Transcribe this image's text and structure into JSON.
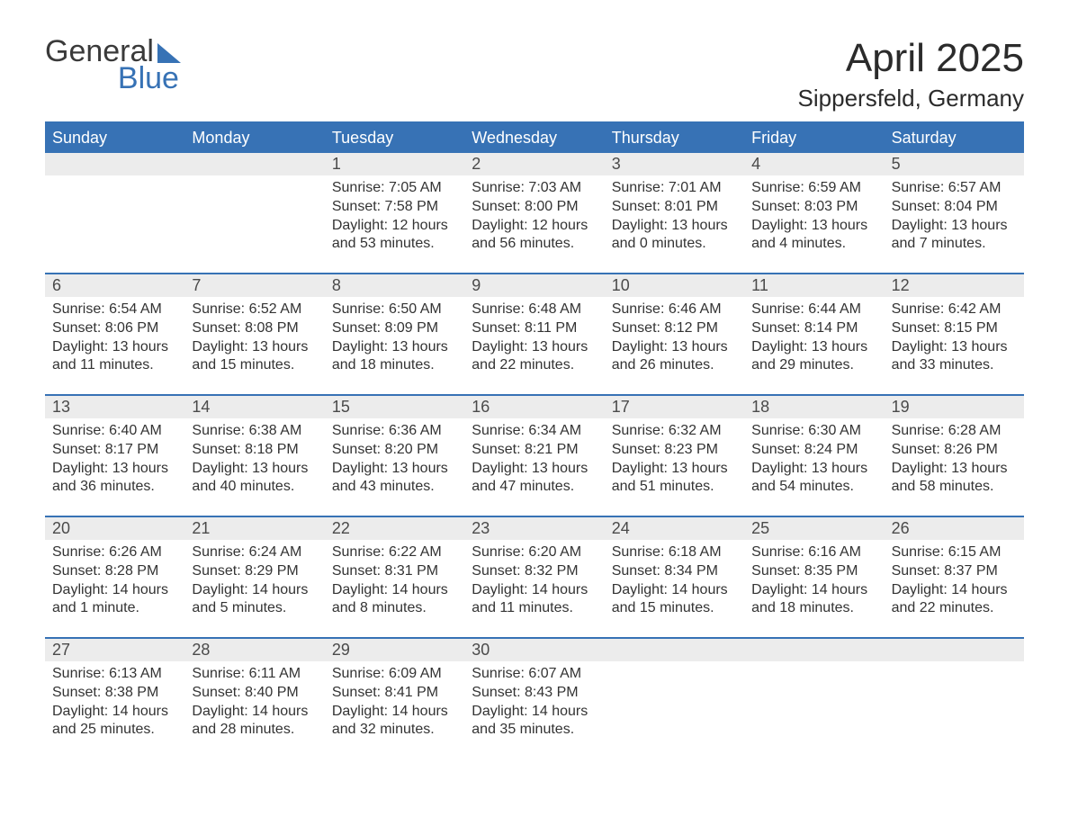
{
  "logo": {
    "line1": "General",
    "line2": "Blue"
  },
  "title": "April 2025",
  "location": "Sippersfeld, Germany",
  "colors": {
    "header_bg": "#3772b5",
    "header_text": "#ffffff",
    "daynum_bg": "#ececec",
    "body_text": "#333333",
    "page_bg": "#ffffff"
  },
  "day_headers": [
    "Sunday",
    "Monday",
    "Tuesday",
    "Wednesday",
    "Thursday",
    "Friday",
    "Saturday"
  ],
  "weeks": [
    [
      null,
      null,
      {
        "n": "1",
        "sunrise": "7:05 AM",
        "sunset": "7:58 PM",
        "daylight": "12 hours and 53 minutes."
      },
      {
        "n": "2",
        "sunrise": "7:03 AM",
        "sunset": "8:00 PM",
        "daylight": "12 hours and 56 minutes."
      },
      {
        "n": "3",
        "sunrise": "7:01 AM",
        "sunset": "8:01 PM",
        "daylight": "13 hours and 0 minutes."
      },
      {
        "n": "4",
        "sunrise": "6:59 AM",
        "sunset": "8:03 PM",
        "daylight": "13 hours and 4 minutes."
      },
      {
        "n": "5",
        "sunrise": "6:57 AM",
        "sunset": "8:04 PM",
        "daylight": "13 hours and 7 minutes."
      }
    ],
    [
      {
        "n": "6",
        "sunrise": "6:54 AM",
        "sunset": "8:06 PM",
        "daylight": "13 hours and 11 minutes."
      },
      {
        "n": "7",
        "sunrise": "6:52 AM",
        "sunset": "8:08 PM",
        "daylight": "13 hours and 15 minutes."
      },
      {
        "n": "8",
        "sunrise": "6:50 AM",
        "sunset": "8:09 PM",
        "daylight": "13 hours and 18 minutes."
      },
      {
        "n": "9",
        "sunrise": "6:48 AM",
        "sunset": "8:11 PM",
        "daylight": "13 hours and 22 minutes."
      },
      {
        "n": "10",
        "sunrise": "6:46 AM",
        "sunset": "8:12 PM",
        "daylight": "13 hours and 26 minutes."
      },
      {
        "n": "11",
        "sunrise": "6:44 AM",
        "sunset": "8:14 PM",
        "daylight": "13 hours and 29 minutes."
      },
      {
        "n": "12",
        "sunrise": "6:42 AM",
        "sunset": "8:15 PM",
        "daylight": "13 hours and 33 minutes."
      }
    ],
    [
      {
        "n": "13",
        "sunrise": "6:40 AM",
        "sunset": "8:17 PM",
        "daylight": "13 hours and 36 minutes."
      },
      {
        "n": "14",
        "sunrise": "6:38 AM",
        "sunset": "8:18 PM",
        "daylight": "13 hours and 40 minutes."
      },
      {
        "n": "15",
        "sunrise": "6:36 AM",
        "sunset": "8:20 PM",
        "daylight": "13 hours and 43 minutes."
      },
      {
        "n": "16",
        "sunrise": "6:34 AM",
        "sunset": "8:21 PM",
        "daylight": "13 hours and 47 minutes."
      },
      {
        "n": "17",
        "sunrise": "6:32 AM",
        "sunset": "8:23 PM",
        "daylight": "13 hours and 51 minutes."
      },
      {
        "n": "18",
        "sunrise": "6:30 AM",
        "sunset": "8:24 PM",
        "daylight": "13 hours and 54 minutes."
      },
      {
        "n": "19",
        "sunrise": "6:28 AM",
        "sunset": "8:26 PM",
        "daylight": "13 hours and 58 minutes."
      }
    ],
    [
      {
        "n": "20",
        "sunrise": "6:26 AM",
        "sunset": "8:28 PM",
        "daylight": "14 hours and 1 minute."
      },
      {
        "n": "21",
        "sunrise": "6:24 AM",
        "sunset": "8:29 PM",
        "daylight": "14 hours and 5 minutes."
      },
      {
        "n": "22",
        "sunrise": "6:22 AM",
        "sunset": "8:31 PM",
        "daylight": "14 hours and 8 minutes."
      },
      {
        "n": "23",
        "sunrise": "6:20 AM",
        "sunset": "8:32 PM",
        "daylight": "14 hours and 11 minutes."
      },
      {
        "n": "24",
        "sunrise": "6:18 AM",
        "sunset": "8:34 PM",
        "daylight": "14 hours and 15 minutes."
      },
      {
        "n": "25",
        "sunrise": "6:16 AM",
        "sunset": "8:35 PM",
        "daylight": "14 hours and 18 minutes."
      },
      {
        "n": "26",
        "sunrise": "6:15 AM",
        "sunset": "8:37 PM",
        "daylight": "14 hours and 22 minutes."
      }
    ],
    [
      {
        "n": "27",
        "sunrise": "6:13 AM",
        "sunset": "8:38 PM",
        "daylight": "14 hours and 25 minutes."
      },
      {
        "n": "28",
        "sunrise": "6:11 AM",
        "sunset": "8:40 PM",
        "daylight": "14 hours and 28 minutes."
      },
      {
        "n": "29",
        "sunrise": "6:09 AM",
        "sunset": "8:41 PM",
        "daylight": "14 hours and 32 minutes."
      },
      {
        "n": "30",
        "sunrise": "6:07 AM",
        "sunset": "8:43 PM",
        "daylight": "14 hours and 35 minutes."
      },
      null,
      null,
      null
    ]
  ],
  "labels": {
    "sunrise": "Sunrise: ",
    "sunset": "Sunset: ",
    "daylight": "Daylight: "
  }
}
